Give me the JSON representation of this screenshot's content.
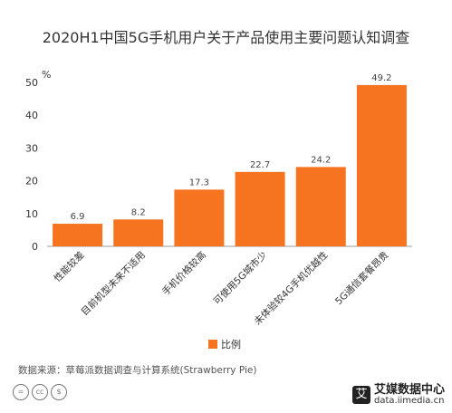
{
  "chart_data": {
    "type": "bar",
    "title": "2020H1中国5G手机用户关于产品使用主要问题认知调查",
    "ylabel": "%",
    "categories": [
      "性能较差",
      "目前机型未来不适用",
      "手机价格较高",
      "可使用5G城市少",
      "未体验较4G手机优越性",
      "5G通信套餐昂贵"
    ],
    "series": [
      {
        "name": "比例",
        "values": [
          6.9,
          8.2,
          17.3,
          22.7,
          24.2,
          49.2
        ]
      }
    ],
    "data_labels": [
      "6.9",
      "8.2",
      "17.3",
      "22.7",
      "24.2",
      "49.2"
    ],
    "yticks": [
      "0",
      "10",
      "20",
      "30",
      "40",
      "50"
    ],
    "ylim": [
      0,
      50
    ],
    "grid": false,
    "legend_position": "bottom-center",
    "bar_color": "#f6731f"
  },
  "source_text": "数据来源：草莓派数据调查与计算系统(Strawberry Pie)",
  "license_icons": [
    "=",
    "cc",
    "$"
  ],
  "brand": {
    "mark": "艾",
    "name": "艾媒数据中心",
    "url": "data.iimedia.cn"
  }
}
